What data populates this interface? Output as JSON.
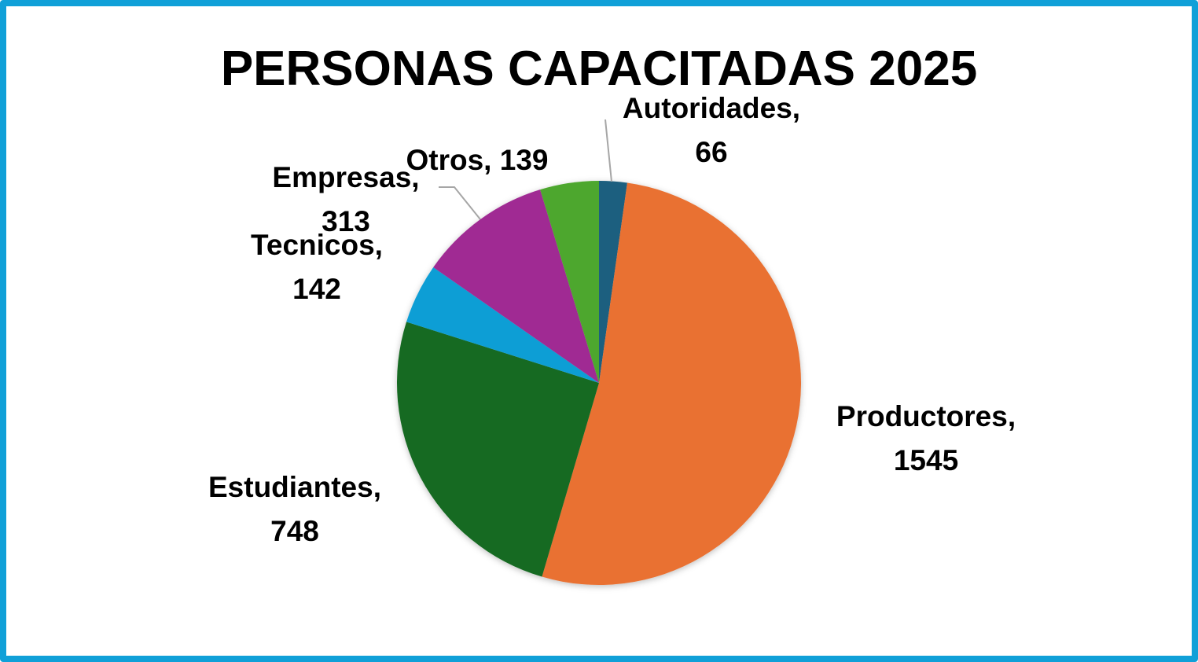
{
  "chart_data": {
    "type": "pie",
    "title": "PERSONAS CAPACITADAS 2025",
    "start_angle": "top, clockwise",
    "slices": [
      {
        "label": "Autoridades",
        "value": 66,
        "color": "#1a5f7f"
      },
      {
        "label": "Productores",
        "value": 1545,
        "color": "#e97132"
      },
      {
        "label": "Estudiantes",
        "value": 748,
        "color": "#196b24"
      },
      {
        "label": "Tecnicos",
        "value": 142,
        "color": "#0f9ed5"
      },
      {
        "label": "Empresas",
        "value": 313,
        "color": "#a02b93"
      },
      {
        "label": "Otros",
        "value": 139,
        "color": "#4ea72e"
      }
    ],
    "legend": "none",
    "data_labels": "category, value"
  },
  "frame_color": "#10a0d8"
}
